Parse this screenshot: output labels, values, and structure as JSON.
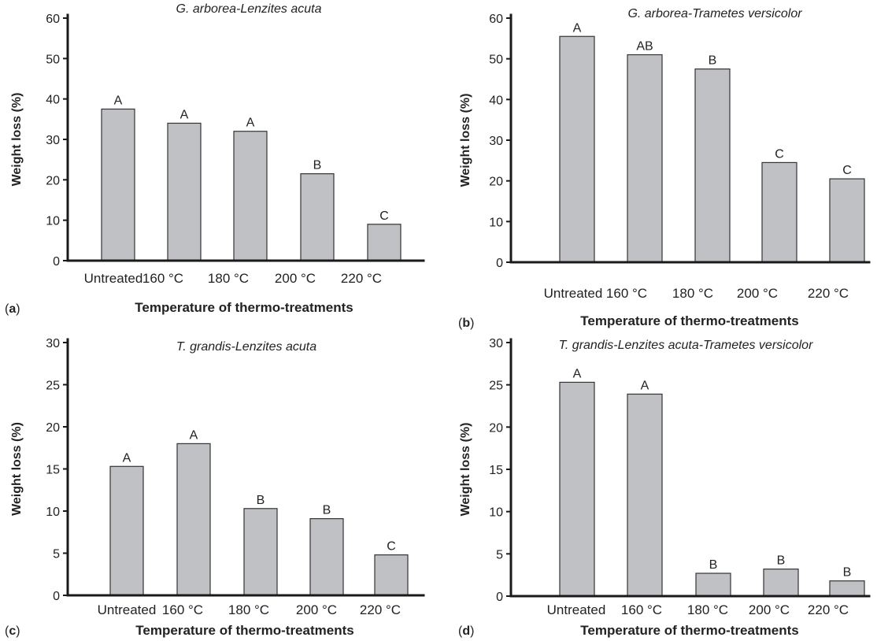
{
  "chart_data": [
    {
      "type": "bar",
      "panel_letter": "a",
      "title": "G. arborea-Lenzites acuta",
      "xlabel": "Temperature of thermo-treatments",
      "ylabel": "Weight loss (%)",
      "categories": [
        "Untreated",
        "160 °C",
        "180 °C",
        "200 °C",
        "220 °C"
      ],
      "values": [
        37.5,
        34,
        32,
        21.5,
        9
      ],
      "significance": [
        "A",
        "A",
        "A",
        "B",
        "C"
      ],
      "ylim": [
        0,
        60
      ],
      "yticks": [
        0,
        10,
        20,
        30,
        40,
        50,
        60
      ],
      "grid": false
    },
    {
      "type": "bar",
      "panel_letter": "b",
      "title": "G. arborea-Trametes versicolor",
      "xlabel": "Temperature of thermo-treatments",
      "ylabel": "Weight loss (%)",
      "categories": [
        "Untreated",
        "160 °C",
        "180 °C",
        "200 °C",
        "220 °C"
      ],
      "values": [
        55.5,
        51,
        47.5,
        24.5,
        20.5
      ],
      "significance": [
        "A",
        "AB",
        "B",
        "C",
        "C"
      ],
      "ylim": [
        0,
        60
      ],
      "yticks": [
        0,
        10,
        20,
        30,
        40,
        50,
        60
      ],
      "grid": false
    },
    {
      "type": "bar",
      "panel_letter": "c",
      "title": "T. grandis-Lenzites acuta",
      "xlabel": "Temperature of thermo-treatments",
      "ylabel": "Weight loss (%)",
      "categories": [
        "Untreated",
        "160 °C",
        "180 °C",
        "200 °C",
        "220 °C"
      ],
      "values": [
        15.3,
        18,
        10.3,
        9.1,
        4.8
      ],
      "significance": [
        "A",
        "A",
        "B",
        "B",
        "C"
      ],
      "ylim": [
        0,
        30
      ],
      "yticks": [
        0,
        5,
        10,
        15,
        20,
        25,
        30
      ],
      "grid": false
    },
    {
      "type": "bar",
      "panel_letter": "d",
      "title": "T. grandis-Lenzites acuta-Trametes versicolor",
      "xlabel": "Temperature of thermo-treatments",
      "ylabel": "Weight loss (%)",
      "categories": [
        "Untreated",
        "160 °C",
        "180 °C",
        "200 °C",
        "220 °C"
      ],
      "values": [
        25.3,
        23.9,
        2.7,
        3.2,
        1.8
      ],
      "significance": [
        "A",
        "A",
        "B",
        "B",
        "B"
      ],
      "ylim": [
        0,
        30
      ],
      "yticks": [
        0,
        5,
        10,
        15,
        20,
        25,
        30
      ],
      "grid": false
    }
  ]
}
